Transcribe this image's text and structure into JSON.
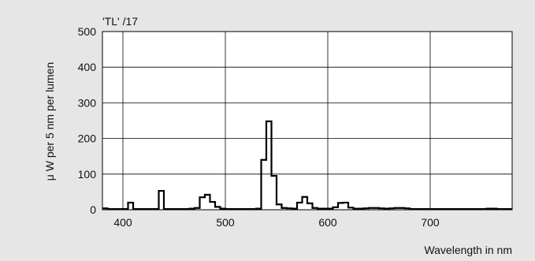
{
  "chart_data": {
    "type": "line",
    "title": "'TL' /17",
    "xlabel": "Wavelength in nm",
    "ylabel": "μ W per 5 nm per lumen",
    "xlim": [
      380,
      780
    ],
    "ylim": [
      0,
      500
    ],
    "xticks": [
      400,
      500,
      600,
      700
    ],
    "yticks": [
      0,
      100,
      200,
      300,
      400,
      500
    ],
    "grid": true,
    "legend": "none",
    "series": [
      {
        "step": 5,
        "x": [
          380,
          385,
          390,
          395,
          400,
          405,
          410,
          415,
          420,
          425,
          430,
          435,
          440,
          445,
          450,
          455,
          460,
          465,
          470,
          475,
          480,
          485,
          490,
          495,
          500,
          505,
          510,
          515,
          520,
          525,
          530,
          535,
          540,
          545,
          550,
          555,
          560,
          565,
          570,
          575,
          580,
          585,
          590,
          595,
          600,
          605,
          610,
          615,
          620,
          625,
          630,
          635,
          640,
          645,
          650,
          655,
          660,
          665,
          670,
          675,
          680,
          685,
          690,
          695,
          700,
          705,
          710,
          715,
          720,
          725,
          730,
          735,
          740,
          745,
          750,
          755,
          760,
          765,
          770,
          775
        ],
        "values": [
          4,
          2,
          2,
          2,
          2,
          20,
          2,
          2,
          2,
          2,
          2,
          53,
          2,
          2,
          2,
          2,
          2,
          3,
          5,
          35,
          42,
          22,
          8,
          3,
          2,
          2,
          2,
          2,
          2,
          2,
          3,
          140,
          248,
          95,
          15,
          5,
          4,
          3,
          20,
          36,
          18,
          5,
          3,
          3,
          3,
          7,
          19,
          20,
          6,
          3,
          3,
          4,
          5,
          5,
          4,
          3,
          4,
          5,
          5,
          4,
          2,
          2,
          2,
          2,
          2,
          2,
          2,
          2,
          2,
          2,
          2,
          2,
          2,
          2,
          2,
          3,
          3,
          2,
          2,
          2
        ],
        "color": "#000000"
      }
    ]
  }
}
